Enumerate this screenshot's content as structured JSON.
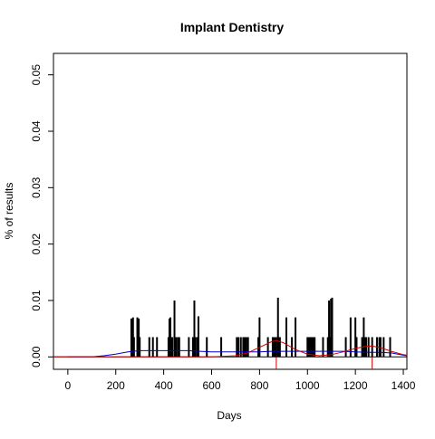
{
  "chart_data": {
    "type": "bar",
    "title": "Implant Dentistry",
    "xlabel": "Days",
    "ylabel": "% of results",
    "xlim": [
      -60,
      1415
    ],
    "ylim": [
      -0.0022,
      0.0538
    ],
    "xticks": [
      0,
      200,
      400,
      600,
      800,
      1000,
      1200,
      1400
    ],
    "xtick_labels": [
      "0",
      "200",
      "400",
      "600",
      "800",
      "1000",
      "1200",
      "1400"
    ],
    "yticks": [
      0.0,
      0.01,
      0.02,
      0.03,
      0.04,
      0.05
    ],
    "ytick_labels": [
      "0.00",
      "0.01",
      "0.02",
      "0.03",
      "0.04",
      "0.05"
    ],
    "grid": false,
    "legend": false,
    "series": [
      {
        "kind": "spikes",
        "color": "#000000",
        "x": [
          265,
          268,
          272,
          276,
          290,
          293,
          296,
          300,
          340,
          355,
          372,
          420,
          424,
          428,
          432,
          436,
          445,
          448,
          452,
          460,
          465,
          505,
          522,
          528,
          532,
          540,
          545,
          580,
          640,
          705,
          712,
          722,
          732,
          738,
          745,
          752,
          795,
          800,
          835,
          855,
          860,
          865,
          870,
          877,
          881,
          885,
          912,
          935,
          950,
          1000,
          1004,
          1008,
          1012,
          1016,
          1020,
          1025,
          1030,
          1065,
          1085,
          1090,
          1095,
          1098,
          1103,
          1160,
          1180,
          1200,
          1205,
          1228,
          1235,
          1241,
          1245,
          1255,
          1270,
          1290,
          1300,
          1305,
          1318,
          1345
        ],
        "y": [
          0.0068,
          0.0035,
          0.007,
          0.0035,
          0.007,
          0.0035,
          0.0068,
          0.0035,
          0.0035,
          0.0035,
          0.0035,
          0.0035,
          0.0068,
          0.007,
          0.0035,
          0.0035,
          0.01,
          0.0035,
          0.0035,
          0.0035,
          0.0035,
          0.0035,
          0.0035,
          0.01,
          0.0035,
          0.0035,
          0.0072,
          0.0035,
          0.0035,
          0.0035,
          0.0035,
          0.0035,
          0.0035,
          0.0035,
          0.0035,
          0.0035,
          0.0035,
          0.007,
          0.0035,
          0.0035,
          0.0035,
          0.0035,
          0.0035,
          0.0105,
          0.0035,
          0.0035,
          0.007,
          0.0035,
          0.007,
          0.0035,
          0.0035,
          0.0035,
          0.0035,
          0.0035,
          0.0035,
          0.0035,
          0.0035,
          0.0035,
          0.0035,
          0.01,
          0.0035,
          0.0103,
          0.0105,
          0.0035,
          0.007,
          0.007,
          0.0035,
          0.0035,
          0.007,
          0.0035,
          0.0035,
          0.0035,
          0.0035,
          0.0035,
          0.0035,
          0.0035,
          0.0035,
          0.0035
        ]
      },
      {
        "kind": "line",
        "color": "#0000cc",
        "x": [
          0,
          100,
          150,
          200,
          250,
          300,
          350,
          400,
          450,
          500,
          550,
          600,
          650,
          700,
          750,
          800,
          850,
          900,
          950,
          1000,
          1050,
          1100,
          1150,
          1200,
          1250,
          1300,
          1350,
          1400,
          1415
        ],
        "y": [
          0.0,
          0.0,
          0.0002,
          0.0005,
          0.0009,
          0.0011,
          0.0011,
          0.0011,
          0.0011,
          0.0011,
          0.001,
          0.0009,
          0.0009,
          0.0009,
          0.0009,
          0.0009,
          0.001,
          0.001,
          0.001,
          0.001,
          0.001,
          0.001,
          0.001,
          0.0009,
          0.0008,
          0.0008,
          0.0007,
          0.0003,
          0.0002
        ]
      },
      {
        "kind": "line",
        "color": "#cc0000",
        "x": [
          -60,
          0,
          600,
          700,
          750,
          800,
          850,
          870,
          900,
          950,
          1000,
          1050,
          1100,
          1150,
          1200,
          1250,
          1270,
          1300,
          1350,
          1400,
          1415
        ],
        "y": [
          0.0,
          0.0,
          0.0,
          0.0002,
          0.0007,
          0.0017,
          0.0027,
          0.0029,
          0.0025,
          0.0013,
          0.0005,
          0.0002,
          0.0004,
          0.0009,
          0.0015,
          0.0019,
          0.0019,
          0.0017,
          0.001,
          0.0004,
          0.0003
        ]
      }
    ],
    "reference_lines": [
      {
        "orientation": "horizontal",
        "y": 0.0,
        "color": "#000000"
      }
    ],
    "markers": [
      {
        "x": 870,
        "color": "#cc0000"
      },
      {
        "x": 1270,
        "color": "#cc0000"
      }
    ]
  }
}
